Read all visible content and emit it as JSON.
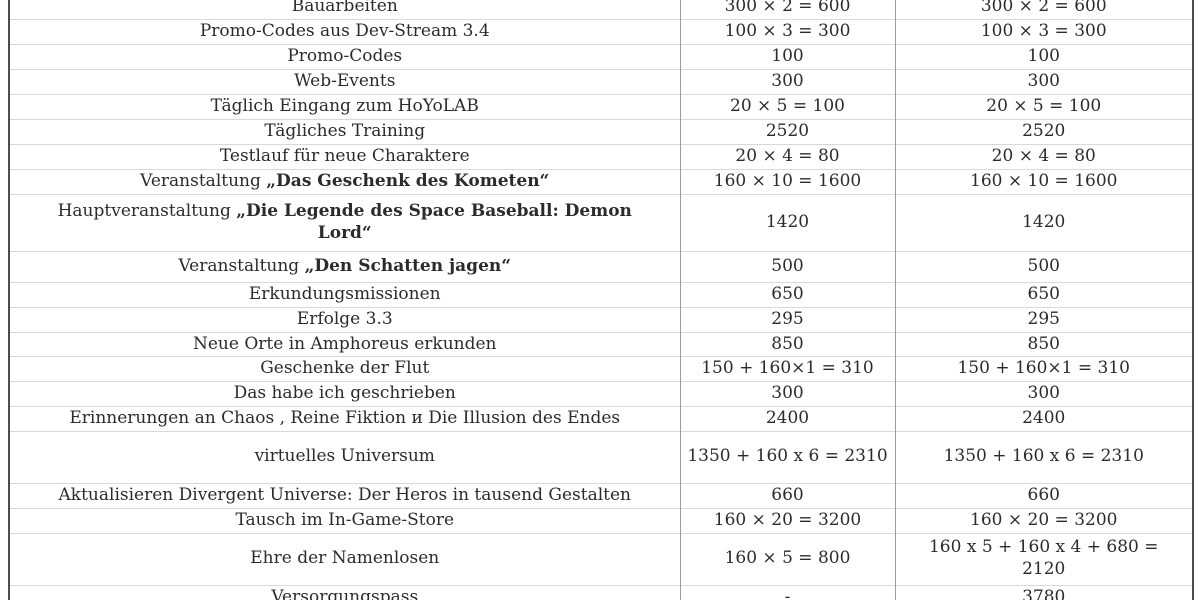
{
  "table": {
    "rows": [
      {
        "label": "Bauarbeiten",
        "label_bold": "",
        "col2": "300 × 2 = 600",
        "col3": "300 × 2 = 600"
      },
      {
        "label": "Promo-Codes aus Dev-Stream 3.4",
        "label_bold": "",
        "col2": "100 × 3 = 300",
        "col3": "100 × 3 = 300"
      },
      {
        "label": "Promo-Codes",
        "label_bold": "",
        "col2": "100",
        "col3": "100"
      },
      {
        "label": "Web-Events",
        "label_bold": "",
        "col2": "300",
        "col3": "300"
      },
      {
        "label": "Täglich Eingang zum HoYoLAB",
        "label_bold": "",
        "col2": "20 × 5 = 100",
        "col3": "20 × 5 = 100"
      },
      {
        "label": "Tägliches Training",
        "label_bold": "",
        "col2": "2520",
        "col3": "2520"
      },
      {
        "label": "Testlauf für neue Charaktere",
        "label_bold": "",
        "col2": "20 × 4 = 80",
        "col3": "20 × 4 = 80"
      },
      {
        "label": "Veranstaltung ",
        "label_bold": "„Das Geschenk des Kometen“",
        "col2": "160 × 10 = 1600",
        "col3": "160 × 10 = 1600"
      },
      {
        "label": "Hauptveranstaltung ",
        "label_bold": "„Die Legende des Space Baseball: Demon Lord“",
        "col2": "1420",
        "col3": "1420"
      },
      {
        "label": "Veranstaltung ",
        "label_bold": "„Den Schatten jagen“",
        "col2": "500",
        "col3": "500"
      },
      {
        "label": "Erkundungsmissionen",
        "label_bold": "",
        "col2": "650",
        "col3": "650"
      },
      {
        "label": "Erfolge 3.3",
        "label_bold": "",
        "col2": "295",
        "col3": "295"
      },
      {
        "label": "Neue Orte in Amphoreus erkunden",
        "label_bold": "",
        "col2": "850",
        "col3": "850"
      },
      {
        "label": "Geschenke der Flut",
        "label_bold": "",
        "col2": "150 + 160×1 = 310",
        "col3": "150 + 160×1 = 310"
      },
      {
        "label": "Das habe ich geschrieben",
        "label_bold": "",
        "col2": "300",
        "col3": "300"
      },
      {
        "label": "Erinnerungen an Chaos , Reine Fiktion и Die Illusion des Endes",
        "label_bold": "",
        "col2": "2400",
        "col3": "2400"
      },
      {
        "label": "virtuelles Universum",
        "label_bold": "",
        "col2": "1350 + 160 x 6 = 2310",
        "col3": "1350 + 160 x 6 = 2310"
      },
      {
        "label": "Aktualisieren Divergent Universe: Der Heros in tausend Gestalten",
        "label_bold": "",
        "col2": "660",
        "col3": "660"
      },
      {
        "label": "Tausch im In-Game-Store",
        "label_bold": "",
        "col2": "160 × 20 = 3200",
        "col3": "160 × 20 = 3200"
      },
      {
        "label": "Ehre der Namenlosen",
        "label_bold": "",
        "col2": "160 × 5 = 800",
        "col3": "160 x 5 + 160 x 4 + 680 = 2120"
      },
      {
        "label": "Versorgungspass",
        "label_bold": "",
        "col2": "-",
        "col3": "3780"
      }
    ]
  }
}
